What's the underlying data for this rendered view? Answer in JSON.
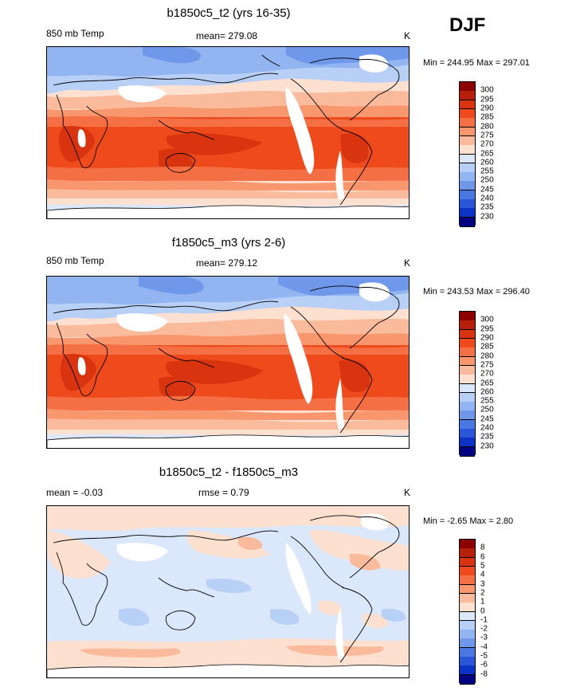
{
  "season": "DJF",
  "panels": [
    {
      "title": "b1850c5_t2 (yrs 16-35)",
      "left_label": "850 mb Temp",
      "center_label": "mean= 279.08",
      "units": "K",
      "minmax": "Min = 244.95 Max = 297.01"
    },
    {
      "title": "f1850c5_m3 (yrs 2-6)",
      "left_label": "850 mb Temp",
      "center_label": "mean= 279.12",
      "units": "K",
      "minmax": "Min = 243.53 Max = 296.40"
    },
    {
      "title": "b1850c5_t2 - f1850c5_m3",
      "left_label": "mean =  -0.03",
      "center_label": "rmse =   0.79",
      "units": "K",
      "minmax": "Min =  -2.65 Max =   2.80"
    }
  ],
  "chart_data": [
    {
      "type": "heatmap",
      "title": "b1850c5_t2 (yrs 16-35)",
      "variable": "850 mb Temp",
      "units": "K",
      "mean": 279.08,
      "min": 244.95,
      "max": 297.01,
      "colorbar_levels": [
        "300",
        "295",
        "290",
        "285",
        "280",
        "275",
        "270",
        "265",
        "260",
        "255",
        "250",
        "245",
        "240",
        "235",
        "230"
      ],
      "colorbar_colors": [
        "#8b0000",
        "#b5200a",
        "#d8340f",
        "#ee4a1c",
        "#f56f45",
        "#f8966e",
        "#fabb9c",
        "#fde0cf",
        "#dbe7fb",
        "#b9d0f6",
        "#92b4f0",
        "#6f98eb",
        "#4a78e2",
        "#2a57d8",
        "#0d33c6",
        "#000080"
      ]
    },
    {
      "type": "heatmap",
      "title": "f1850c5_m3 (yrs 2-6)",
      "variable": "850 mb Temp",
      "units": "K",
      "mean": 279.12,
      "min": 243.53,
      "max": 296.4,
      "colorbar_levels": [
        "300",
        "295",
        "290",
        "285",
        "280",
        "275",
        "270",
        "265",
        "260",
        "255",
        "250",
        "245",
        "240",
        "235",
        "230"
      ],
      "colorbar_colors": [
        "#8b0000",
        "#b5200a",
        "#d8340f",
        "#ee4a1c",
        "#f56f45",
        "#f8966e",
        "#fabb9c",
        "#fde0cf",
        "#dbe7fb",
        "#b9d0f6",
        "#92b4f0",
        "#6f98eb",
        "#4a78e2",
        "#2a57d8",
        "#0d33c6",
        "#000080"
      ]
    },
    {
      "type": "heatmap",
      "title": "b1850c5_t2 - f1850c5_m3",
      "units": "K",
      "mean": -0.03,
      "rmse": 0.79,
      "min": -2.65,
      "max": 2.8,
      "colorbar_levels": [
        "8",
        "6",
        "5",
        "4",
        "3",
        "2",
        "1",
        "0",
        "-1",
        "-2",
        "-3",
        "-4",
        "-5",
        "-6",
        "-8"
      ],
      "colorbar_colors": [
        "#8b0000",
        "#b5200a",
        "#d8340f",
        "#ee4a1c",
        "#f56f45",
        "#f8966e",
        "#fabb9c",
        "#fde0cf",
        "#dbe7fb",
        "#b9d0f6",
        "#92b4f0",
        "#6f98eb",
        "#4a78e2",
        "#2a57d8",
        "#0d33c6",
        "#000080"
      ]
    }
  ]
}
